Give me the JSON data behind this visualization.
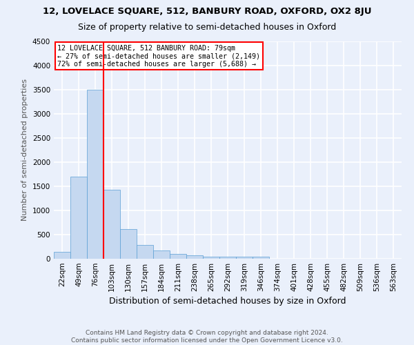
{
  "title1": "12, LOVELACE SQUARE, 512, BANBURY ROAD, OXFORD, OX2 8JU",
  "title2": "Size of property relative to semi-detached houses in Oxford",
  "xlabel": "Distribution of semi-detached houses by size in Oxford",
  "ylabel": "Number of semi-detached properties",
  "footer1": "Contains HM Land Registry data © Crown copyright and database right 2024.",
  "footer2": "Contains public sector information licensed under the Open Government Licence v3.0.",
  "bin_labels": [
    "22sqm",
    "49sqm",
    "76sqm",
    "103sqm",
    "130sqm",
    "157sqm",
    "184sqm",
    "211sqm",
    "238sqm",
    "265sqm",
    "292sqm",
    "319sqm",
    "346sqm",
    "374sqm",
    "401sqm",
    "428sqm",
    "455sqm",
    "482sqm",
    "509sqm",
    "536sqm",
    "563sqm"
  ],
  "bar_values": [
    150,
    1700,
    3500,
    1430,
    620,
    290,
    165,
    95,
    70,
    50,
    45,
    40,
    50,
    0,
    0,
    0,
    0,
    0,
    0,
    0,
    0
  ],
  "bar_color": "#c5d8f0",
  "bar_edge_color": "#5a9fd4",
  "ylim": [
    0,
    4500
  ],
  "yticks": [
    0,
    500,
    1000,
    1500,
    2000,
    2500,
    3000,
    3500,
    4000,
    4500
  ],
  "red_line_bin": 2,
  "annotation_text": "12 LOVELACE SQUARE, 512 BANBURY ROAD: 79sqm\n← 27% of semi-detached houses are smaller (2,149)\n72% of semi-detached houses are larger (5,688) →",
  "annotation_box_color": "white",
  "annotation_edge_color": "red",
  "vline_color": "red",
  "background_color": "#eaf0fb",
  "grid_color": "white",
  "title1_fontsize": 9.5,
  "title2_fontsize": 9,
  "ylabel_fontsize": 8,
  "xlabel_fontsize": 9,
  "tick_fontsize": 7.5,
  "footer_fontsize": 6.5
}
